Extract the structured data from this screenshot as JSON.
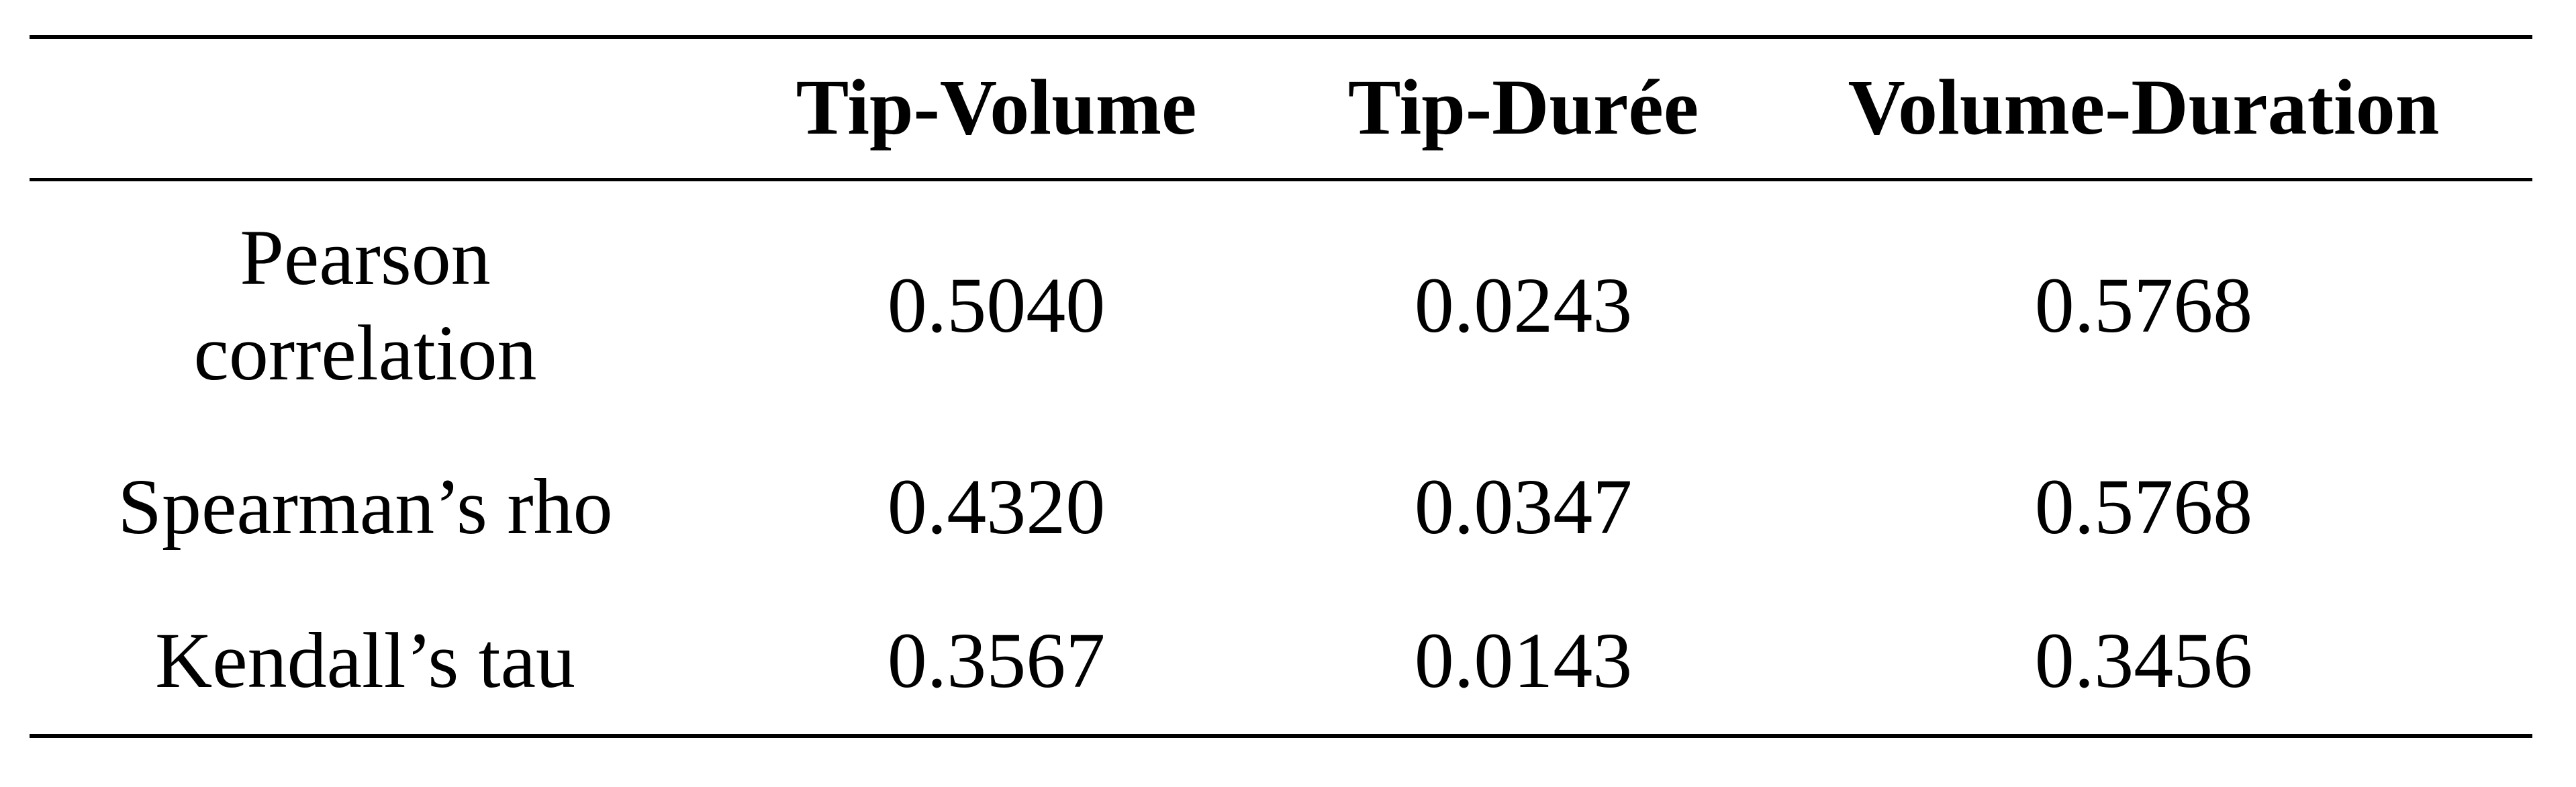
{
  "table": {
    "columns": [
      "",
      "Tip-Volume",
      "Tip-Durée",
      "Volume-Duration"
    ],
    "rows": [
      {
        "label_lines": [
          "Pearson",
          "correlation"
        ],
        "values": [
          "0.5040",
          "0.0243",
          "0.5768"
        ]
      },
      {
        "label_lines": [
          "Spearman’s rho"
        ],
        "values": [
          "0.4320",
          "0.0347",
          "0.5768"
        ]
      },
      {
        "label_lines": [
          "Kendall’s tau"
        ],
        "values": [
          "0.3567",
          "0.0143",
          "0.3456"
        ]
      }
    ]
  }
}
